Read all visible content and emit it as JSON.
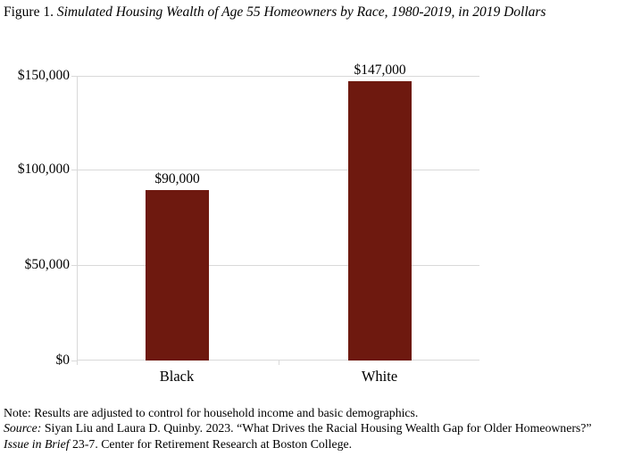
{
  "figure": {
    "title_prefix": "Figure 1. ",
    "title_italic": "Simulated Housing Wealth of Age 55 Homeowners by Race, 1980-2019, in 2019 Dollars"
  },
  "chart_data": {
    "type": "bar",
    "title": "Simulated Housing Wealth of Age 55 Homeowners by Race, 1980-2019, in 2019 Dollars",
    "categories": [
      "Black",
      "White"
    ],
    "values": [
      90000,
      147000
    ],
    "data_labels": [
      "$90,000",
      "$147,000"
    ],
    "y_ticks": [
      "$0",
      "$50,000",
      "$100,000",
      "$150,000"
    ],
    "ylim": [
      0,
      150000
    ],
    "grid": true,
    "legend": "none",
    "bar_color": "#6e190f",
    "gridline_color": "#d9d9d9",
    "xlabel": "",
    "ylabel": ""
  },
  "notes": {
    "note_line": "Note: Results are adjusted to control for household income and basic demographics.",
    "source_label": "Source:",
    "source_text_1": " Siyan Liu and Laura D. Quinby. 2023. “What Drives the Racial Housing Wealth Gap for Older Homeowners?” ",
    "source_italic": "Issue in Brief",
    "source_text_2": " 23-7. Center for Retirement Research at Boston College."
  }
}
